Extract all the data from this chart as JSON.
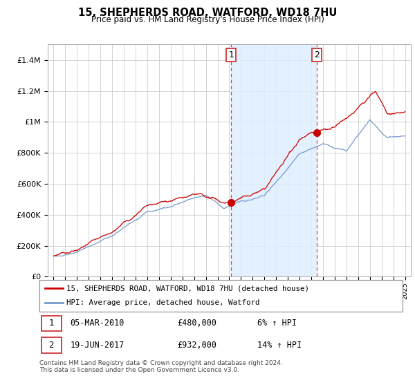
{
  "title": "15, SHEPHERDS ROAD, WATFORD, WD18 7HU",
  "subtitle": "Price paid vs. HM Land Registry's House Price Index (HPI)",
  "x_start_year": 1995,
  "x_end_year": 2025,
  "ylim": [
    0,
    1500000
  ],
  "yticks": [
    0,
    200000,
    400000,
    600000,
    800000,
    1000000,
    1200000,
    1400000
  ],
  "ytick_labels": [
    "£0",
    "£200K",
    "£400K",
    "£600K",
    "£800K",
    "£1M",
    "£1.2M",
    "£1.4M"
  ],
  "house_color": "#cc0000",
  "hpi_color": "#7799cc",
  "marker1_date": 2010.17,
  "marker1_price": 480000,
  "marker2_date": 2017.47,
  "marker2_price": 932000,
  "annotation1_label": "1",
  "annotation2_label": "2",
  "legend_house": "15, SHEPHERDS ROAD, WATFORD, WD18 7HU (detached house)",
  "legend_hpi": "HPI: Average price, detached house, Watford",
  "table_row1": [
    "1",
    "05-MAR-2010",
    "£480,000",
    "6% ↑ HPI"
  ],
  "table_row2": [
    "2",
    "19-JUN-2017",
    "£932,000",
    "14% ↑ HPI"
  ],
  "footer": "Contains HM Land Registry data © Crown copyright and database right 2024.\nThis data is licensed under the Open Government Licence v3.0.",
  "vline_color": "#dd4444",
  "shade_color": "#ddeeff",
  "background_color": "#ffffff",
  "grid_color": "#cccccc"
}
